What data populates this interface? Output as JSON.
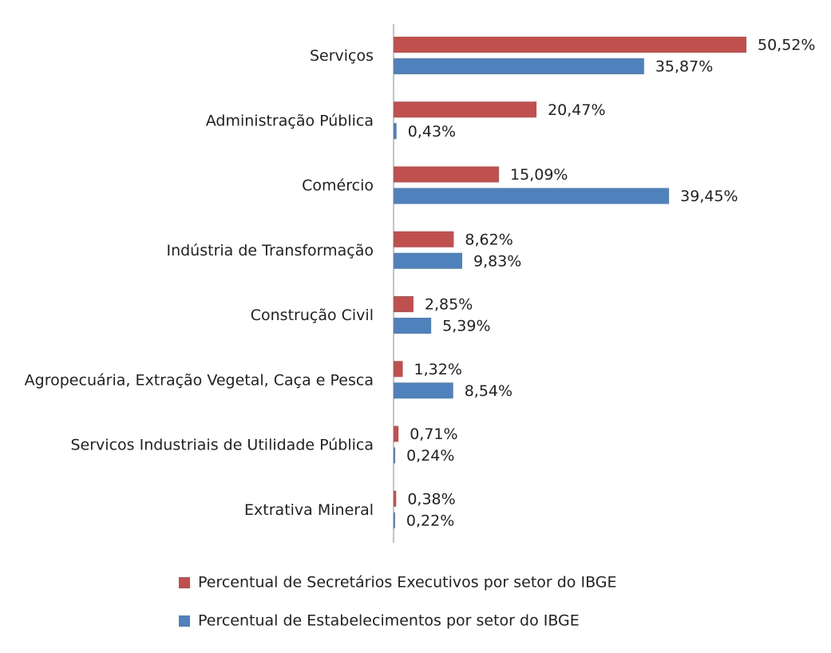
{
  "chart_data": {
    "type": "bar",
    "orientation": "horizontal",
    "categories": [
      "Serviços",
      "Administração Pública",
      "Comércio",
      "Indústria de Transformação",
      "Construção Civil",
      "Agropecuária, Extração Vegetal, Caça e Pesca",
      "Servicos Industriais de Utilidade Pública",
      "Extrativa Mineral"
    ],
    "series": [
      {
        "name": "Percentual de Secretários Executivos por setor do IBGE",
        "color": "#c0504d",
        "values": [
          50.52,
          20.47,
          15.09,
          8.62,
          2.85,
          1.32,
          0.71,
          0.38
        ],
        "value_labels": [
          "50,52%",
          "20,47%",
          "15,09%",
          "8,62%",
          "2,85%",
          "1,32%",
          "0,71%",
          "0,38%"
        ]
      },
      {
        "name": "Percentual de Estabelecimentos por setor do IBGE",
        "color": "#4f81bd",
        "values": [
          35.87,
          0.43,
          39.45,
          9.83,
          5.39,
          8.54,
          0.24,
          0.22
        ],
        "value_labels": [
          "35,87%",
          "0,43%",
          "39,45%",
          "9,83%",
          "5,39%",
          "8,54%",
          "0,24%",
          "0,22%"
        ]
      }
    ],
    "legend": "bottom"
  }
}
